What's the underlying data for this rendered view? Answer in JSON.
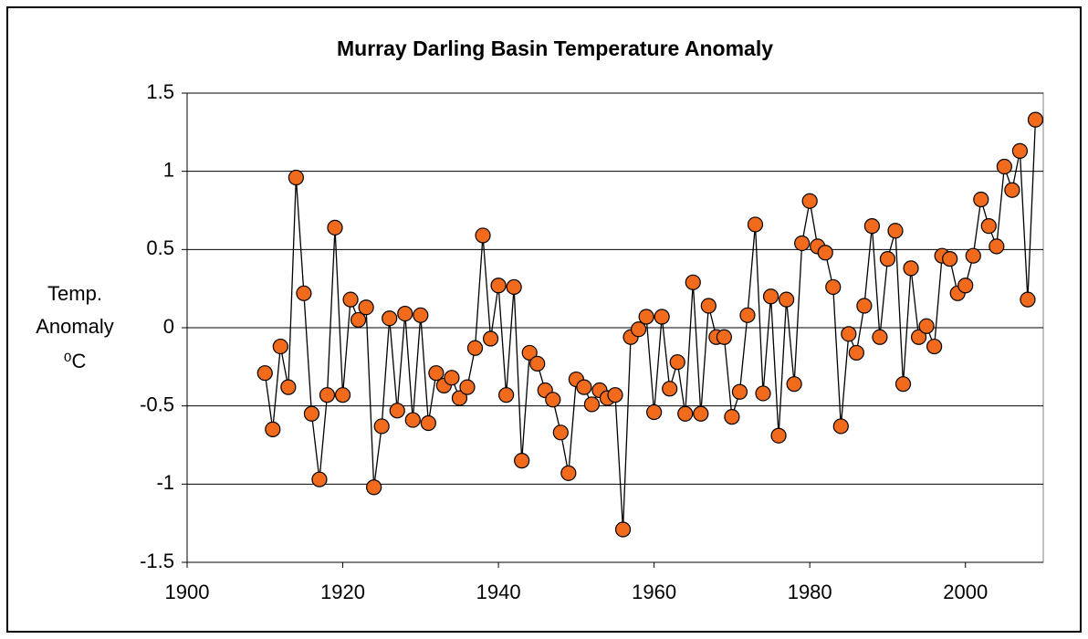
{
  "chart_data": {
    "type": "scatter_line",
    "title": "Murray Darling Basin Temperature Anomaly",
    "y_label": [
      "Temp.",
      "Anomaly",
      "⁰C"
    ],
    "color": "#f26b1d",
    "line_color": "#000000",
    "grid": true,
    "xlim": [
      1900,
      2010
    ],
    "xticks": [
      1900,
      1920,
      1940,
      1960,
      1980,
      2000
    ],
    "ylim": [
      -1.5,
      1.5
    ],
    "yticks": [
      1.5,
      1,
      0.5,
      0,
      -0.5,
      -1,
      -1.5
    ],
    "x": [
      1910,
      1911,
      1912,
      1913,
      1914,
      1915,
      1916,
      1917,
      1918,
      1919,
      1920,
      1921,
      1922,
      1923,
      1924,
      1925,
      1926,
      1927,
      1928,
      1929,
      1930,
      1931,
      1932,
      1933,
      1934,
      1935,
      1936,
      1937,
      1938,
      1939,
      1940,
      1941,
      1942,
      1943,
      1944,
      1945,
      1946,
      1947,
      1948,
      1949,
      1950,
      1951,
      1952,
      1953,
      1954,
      1955,
      1956,
      1957,
      1958,
      1959,
      1960,
      1961,
      1962,
      1963,
      1964,
      1965,
      1966,
      1967,
      1968,
      1969,
      1970,
      1971,
      1972,
      1973,
      1974,
      1975,
      1976,
      1977,
      1978,
      1979,
      1980,
      1981,
      1982,
      1983,
      1984,
      1985,
      1986,
      1987,
      1988,
      1989,
      1990,
      1991,
      1992,
      1993,
      1994,
      1995,
      1996,
      1997,
      1998,
      1999,
      2000,
      2001,
      2002,
      2003,
      2004,
      2005,
      2006,
      2007,
      2008,
      2009
    ],
    "values": [
      -0.29,
      -0.65,
      -0.12,
      -0.38,
      0.96,
      0.22,
      -0.55,
      -0.97,
      -0.43,
      0.64,
      -0.43,
      0.18,
      0.05,
      0.13,
      -1.02,
      -0.63,
      0.06,
      -0.53,
      0.09,
      -0.59,
      0.08,
      -0.61,
      -0.29,
      -0.37,
      -0.32,
      -0.45,
      -0.38,
      -0.13,
      0.59,
      -0.07,
      0.27,
      -0.43,
      0.26,
      -0.85,
      -0.16,
      -0.23,
      -0.4,
      -0.46,
      -0.67,
      -0.93,
      -0.33,
      -0.38,
      -0.49,
      -0.4,
      -0.45,
      -0.43,
      -1.29,
      -0.06,
      -0.01,
      0.07,
      -0.54,
      0.07,
      -0.39,
      -0.22,
      -0.55,
      0.29,
      -0.55,
      0.14,
      -0.06,
      -0.06,
      -0.57,
      -0.41,
      0.08,
      0.66,
      -0.42,
      0.2,
      -0.69,
      0.18,
      -0.36,
      0.54,
      0.81,
      0.52,
      0.48,
      0.26,
      -0.63,
      -0.04,
      -0.16,
      0.14,
      0.65,
      -0.06,
      0.44,
      0.62,
      -0.36,
      0.38,
      -0.06,
      0.01,
      -0.12,
      0.46,
      0.44,
      0.22,
      0.27,
      0.46,
      0.82,
      0.65,
      0.52,
      1.03,
      0.88,
      1.13,
      0.18,
      1.33
    ]
  }
}
